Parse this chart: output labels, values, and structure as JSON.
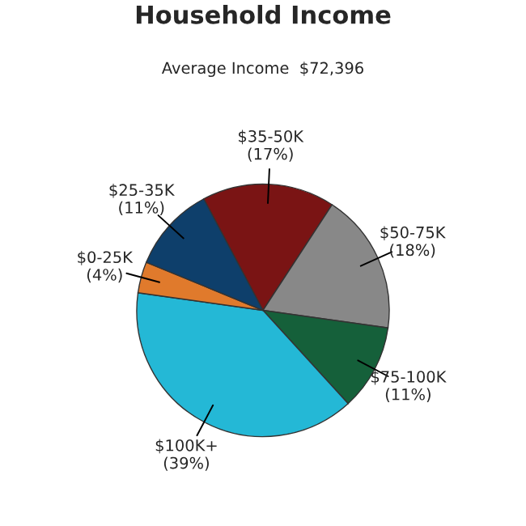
{
  "chart_data": {
    "type": "pie",
    "title": "Household Income",
    "subtitle": "Average Income  $72,396",
    "categories": [
      "$35-50K",
      "$50-75K",
      "$75-100K",
      "$100K+",
      "$0-25K",
      "$25-35K"
    ],
    "values": [
      17,
      18,
      11,
      39,
      4,
      11
    ],
    "value_labels": [
      "(17%)",
      "(18%)",
      "(11%)",
      "(39%)",
      "(4%)",
      "(11%)"
    ],
    "colors": [
      "#7a1414",
      "#888888",
      "#15603a",
      "#24b8d6",
      "#e07a2c",
      "#0e3f6b"
    ]
  }
}
